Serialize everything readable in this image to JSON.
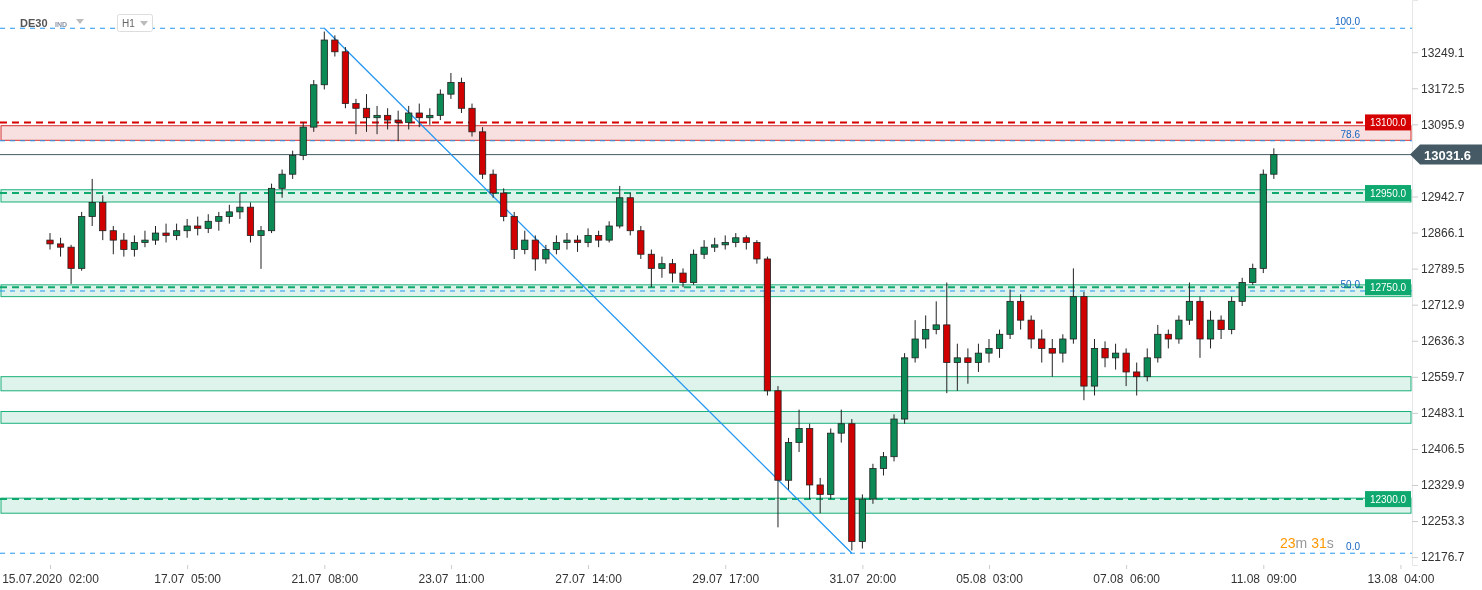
{
  "chart_data": {
    "type": "candlestick",
    "title": "DE30",
    "annotations": [
      "IND",
      "H1",
      "23m 31s",
      {
        "text": "100.0",
        "y": 13300
      },
      {
        "text": "78.6",
        "y": 13061
      },
      {
        "text": "50.0",
        "y": 12742
      },
      {
        "text": "0.0",
        "y": 12185
      }
    ],
    "categories": [
      "15.07.2020  02:00",
      null,
      null,
      null,
      null,
      null,
      null,
      null,
      null,
      null,
      null,
      null,
      null,
      "17.07  05:00",
      null,
      null,
      null,
      null,
      null,
      null,
      null,
      null,
      null,
      null,
      null,
      null,
      "21.07  08:00",
      null,
      null,
      null,
      null,
      null,
      null,
      null,
      null,
      null,
      null,
      null,
      "23.07  11:00",
      null,
      null,
      null,
      null,
      null,
      null,
      null,
      null,
      null,
      null,
      null,
      null,
      "27.07  14:00",
      null,
      null,
      null,
      null,
      null,
      null,
      null,
      null,
      null,
      null,
      null,
      null,
      "29.07  17:00",
      null,
      null,
      null,
      null,
      null,
      null,
      null,
      null,
      null,
      null,
      null,
      null,
      "31.07  20:00",
      null,
      null,
      null,
      null,
      null,
      null,
      null,
      null,
      null,
      null,
      null,
      "05.08  03:00",
      null,
      null,
      null,
      null,
      null,
      null,
      null,
      null,
      null,
      null,
      null,
      null,
      "07.08  06:00",
      null,
      null,
      null,
      null,
      null,
      null,
      null,
      null,
      null,
      null,
      null,
      null,
      "11.08  09:00",
      null,
      null,
      null,
      null,
      null,
      null,
      null,
      null,
      null,
      null,
      null,
      null,
      "13.08  04:00",
      null
    ],
    "ohlc": [
      [
        12850,
        12865,
        12830,
        12842
      ],
      [
        12842,
        12855,
        12815,
        12835
      ],
      [
        12835,
        12840,
        12757,
        12790
      ],
      [
        12790,
        12910,
        12785,
        12900
      ],
      [
        12900,
        12980,
        12880,
        12930
      ],
      [
        12930,
        12945,
        12850,
        12870
      ],
      [
        12870,
        12880,
        12820,
        12850
      ],
      [
        12850,
        12865,
        12815,
        12830
      ],
      [
        12830,
        12860,
        12815,
        12845
      ],
      [
        12845,
        12870,
        12835,
        12850
      ],
      [
        12850,
        12880,
        12840,
        12865
      ],
      [
        12865,
        12885,
        12845,
        12860
      ],
      [
        12860,
        12885,
        12850,
        12870
      ],
      [
        12870,
        12895,
        12855,
        12880
      ],
      [
        12880,
        12900,
        12860,
        12875
      ],
      [
        12875,
        12905,
        12865,
        12890
      ],
      [
        12890,
        12910,
        12870,
        12900
      ],
      [
        12900,
        12925,
        12885,
        12910
      ],
      [
        12910,
        12950,
        12895,
        12920
      ],
      [
        12920,
        12930,
        12845,
        12860
      ],
      [
        12860,
        12880,
        12789,
        12870
      ],
      [
        12870,
        12970,
        12865,
        12960
      ],
      [
        12960,
        13000,
        12940,
        12990
      ],
      [
        12990,
        13040,
        12980,
        13030
      ],
      [
        13030,
        13100,
        13020,
        13090
      ],
      [
        13090,
        13190,
        13080,
        13180
      ],
      [
        13180,
        13293,
        13170,
        13275
      ],
      [
        13275,
        13285,
        13240,
        13250
      ],
      [
        13250,
        13260,
        13130,
        13140
      ],
      [
        13140,
        13150,
        13075,
        13130
      ],
      [
        13130,
        13160,
        13080,
        13110
      ],
      [
        13110,
        13135,
        13075,
        13115
      ],
      [
        13115,
        13130,
        13085,
        13105
      ],
      [
        13105,
        13125,
        13060,
        13100
      ],
      [
        13100,
        13135,
        13085,
        13120
      ],
      [
        13120,
        13140,
        13090,
        13110
      ],
      [
        13110,
        13130,
        13095,
        13115
      ],
      [
        13115,
        13170,
        13105,
        13160
      ],
      [
        13160,
        13205,
        13150,
        13185
      ],
      [
        13185,
        13195,
        13120,
        13130
      ],
      [
        13130,
        13140,
        13070,
        13080
      ],
      [
        13080,
        13090,
        12980,
        12990
      ],
      [
        12990,
        13000,
        12940,
        12950
      ],
      [
        12950,
        12960,
        12890,
        12900
      ],
      [
        12900,
        12910,
        12810,
        12830
      ],
      [
        12830,
        12870,
        12820,
        12850
      ],
      [
        12850,
        12860,
        12785,
        12810
      ],
      [
        12810,
        12840,
        12800,
        12830
      ],
      [
        12830,
        12860,
        12820,
        12845
      ],
      [
        12845,
        12865,
        12830,
        12850
      ],
      [
        12850,
        12860,
        12825,
        12845
      ],
      [
        12845,
        12875,
        12835,
        12860
      ],
      [
        12860,
        12870,
        12835,
        12850
      ],
      [
        12850,
        12890,
        12845,
        12880
      ],
      [
        12880,
        12965,
        12875,
        12940
      ],
      [
        12940,
        12950,
        12860,
        12870
      ],
      [
        12870,
        12880,
        12810,
        12820
      ],
      [
        12820,
        12830,
        12750,
        12790
      ],
      [
        12790,
        12815,
        12770,
        12800
      ],
      [
        12800,
        12810,
        12760,
        12780
      ],
      [
        12780,
        12790,
        12750,
        12760
      ],
      [
        12760,
        12830,
        12755,
        12820
      ],
      [
        12820,
        12850,
        12810,
        12835
      ],
      [
        12835,
        12855,
        12825,
        12840
      ],
      [
        12840,
        12860,
        12830,
        12845
      ],
      [
        12845,
        12865,
        12835,
        12855
      ],
      [
        12855,
        12860,
        12830,
        12845
      ],
      [
        12845,
        12850,
        12800,
        12810
      ],
      [
        12810,
        12815,
        12520,
        12530
      ],
      [
        12530,
        12540,
        12240,
        12340
      ],
      [
        12340,
        12430,
        12320,
        12420
      ],
      [
        12420,
        12490,
        12400,
        12450
      ],
      [
        12450,
        12460,
        12300,
        12330
      ],
      [
        12330,
        12345,
        12270,
        12310
      ],
      [
        12310,
        12450,
        12300,
        12440
      ],
      [
        12440,
        12490,
        12420,
        12460
      ],
      [
        12460,
        12470,
        12191,
        12210
      ],
      [
        12210,
        12310,
        12195,
        12300
      ],
      [
        12300,
        12375,
        12290,
        12365
      ],
      [
        12365,
        12400,
        12350,
        12390
      ],
      [
        12390,
        12480,
        12380,
        12470
      ],
      [
        12470,
        12610,
        12460,
        12600
      ],
      [
        12600,
        12680,
        12590,
        12640
      ],
      [
        12640,
        12690,
        12620,
        12660
      ],
      [
        12660,
        12720,
        12650,
        12670
      ],
      [
        12670,
        12760,
        12525,
        12590
      ],
      [
        12590,
        12630,
        12530,
        12600
      ],
      [
        12600,
        12620,
        12545,
        12590
      ],
      [
        12590,
        12630,
        12570,
        12610
      ],
      [
        12610,
        12640,
        12590,
        12620
      ],
      [
        12620,
        12660,
        12600,
        12650
      ],
      [
        12650,
        12745,
        12640,
        12720
      ],
      [
        12720,
        12735,
        12660,
        12680
      ],
      [
        12680,
        12690,
        12620,
        12640
      ],
      [
        12640,
        12660,
        12590,
        12620
      ],
      [
        12620,
        12640,
        12560,
        12610
      ],
      [
        12610,
        12650,
        12590,
        12640
      ],
      [
        12640,
        12790,
        12630,
        12730
      ],
      [
        12730,
        12740,
        12510,
        12540
      ],
      [
        12540,
        12640,
        12520,
        12620
      ],
      [
        12620,
        12635,
        12580,
        12600
      ],
      [
        12600,
        12630,
        12575,
        12610
      ],
      [
        12610,
        12620,
        12540,
        12570
      ],
      [
        12570,
        12590,
        12520,
        12560
      ],
      [
        12560,
        12620,
        12550,
        12600
      ],
      [
        12600,
        12670,
        12590,
        12650
      ],
      [
        12650,
        12660,
        12620,
        12640
      ],
      [
        12640,
        12690,
        12630,
        12680
      ],
      [
        12680,
        12760,
        12670,
        12720
      ],
      [
        12720,
        12730,
        12600,
        12640
      ],
      [
        12640,
        12700,
        12620,
        12680
      ],
      [
        12680,
        12690,
        12640,
        12660
      ],
      [
        12660,
        12730,
        12650,
        12720
      ],
      [
        12720,
        12770,
        12710,
        12760
      ],
      [
        12760,
        12800,
        12755,
        12790
      ],
      [
        12790,
        13000,
        12780,
        12990
      ],
      [
        12990,
        13045,
        12980,
        13031.6
      ],
      null,
      null,
      null,
      null,
      null,
      null,
      null,
      null,
      null,
      null,
      null,
      null,
      null
    ],
    "series": [
      {
        "type": "line",
        "color": "#2196f3",
        "values": [
          null,
          null,
          null,
          null,
          null,
          null,
          null,
          null,
          null,
          null,
          null,
          null,
          null,
          null,
          null,
          null,
          null,
          null,
          null,
          null,
          null,
          null,
          null,
          null,
          null,
          null,
          13300,
          null,
          null,
          null,
          null,
          null,
          null,
          null,
          null,
          null,
          null,
          null,
          null,
          null,
          null,
          null,
          null,
          null,
          null,
          null,
          null,
          null,
          null,
          null,
          null,
          null,
          null,
          null,
          null,
          null,
          null,
          null,
          null,
          null,
          null,
          null,
          null,
          null,
          null,
          null,
          null,
          null,
          null,
          null,
          null,
          null,
          null,
          null,
          null,
          null,
          12185,
          null,
          null,
          null,
          null,
          null,
          null,
          null,
          null,
          null,
          null,
          null,
          null,
          null,
          null,
          null,
          null,
          null,
          null,
          null,
          null,
          null,
          null,
          null,
          null,
          null,
          null,
          null,
          null,
          null,
          null,
          null,
          null,
          null,
          null,
          null,
          null,
          null,
          null,
          null,
          null,
          null,
          null,
          null,
          null,
          null,
          null,
          null,
          null,
          null,
          null,
          null,
          null,
          null
        ]
      }
    ],
    "ylim": [
      12160,
      13360
    ],
    "yticks": [
      12176.7,
      12253.3,
      12329.9,
      12406.5,
      12483.1,
      12559.7,
      12636.3,
      12712.9,
      12789.5,
      12866.1,
      12942.7,
      13095.9,
      13172.5,
      13249.1
    ],
    "bands": [
      {
        "axis": "y",
        "from": 13062,
        "to": 13093,
        "color": "#d32f2f"
      },
      {
        "axis": "y",
        "from": 12931,
        "to": 12957,
        "color": "#1ab07a"
      },
      {
        "axis": "y",
        "from": 12730,
        "to": 12755,
        "color": "#1ab07a"
      },
      {
        "axis": "y",
        "from": 12530,
        "to": 12560,
        "color": "#1ab07a"
      },
      {
        "axis": "y",
        "from": 12461,
        "to": 12486,
        "color": "#1ab07a"
      },
      {
        "axis": "y",
        "from": 12270,
        "to": 12302,
        "color": "#1ab07a"
      }
    ],
    "ref_lines": [
      {
        "axis": "y",
        "value": 13100,
        "label": "13100.0",
        "color": "#d50000",
        "line_style": "dashed"
      },
      {
        "axis": "y",
        "value": 12950,
        "label": "12950.0",
        "color": "#0fa86e",
        "line_style": "dashed"
      },
      {
        "axis": "y",
        "value": 12750,
        "label": "12750.0",
        "color": "#0fa86e",
        "line_style": "dashed"
      },
      {
        "axis": "y",
        "value": 12300,
        "label": "12300.0",
        "color": "#0fa86e",
        "line_style": "dashed"
      },
      {
        "axis": "y",
        "value": 13031.6,
        "label": "13031.6",
        "color": "#455a64",
        "line_style": "solid"
      },
      {
        "axis": "y",
        "value": 13300,
        "color": "#2196f3",
        "line_style": "dotted"
      },
      {
        "axis": "y",
        "value": 13061,
        "color": "#2196f3",
        "line_style": "dotted"
      },
      {
        "axis": "y",
        "value": 12742,
        "color": "#2196f3",
        "line_style": "dotted"
      },
      {
        "axis": "y",
        "value": 12185,
        "color": "#2196f3",
        "line_style": "dotted"
      }
    ]
  }
}
